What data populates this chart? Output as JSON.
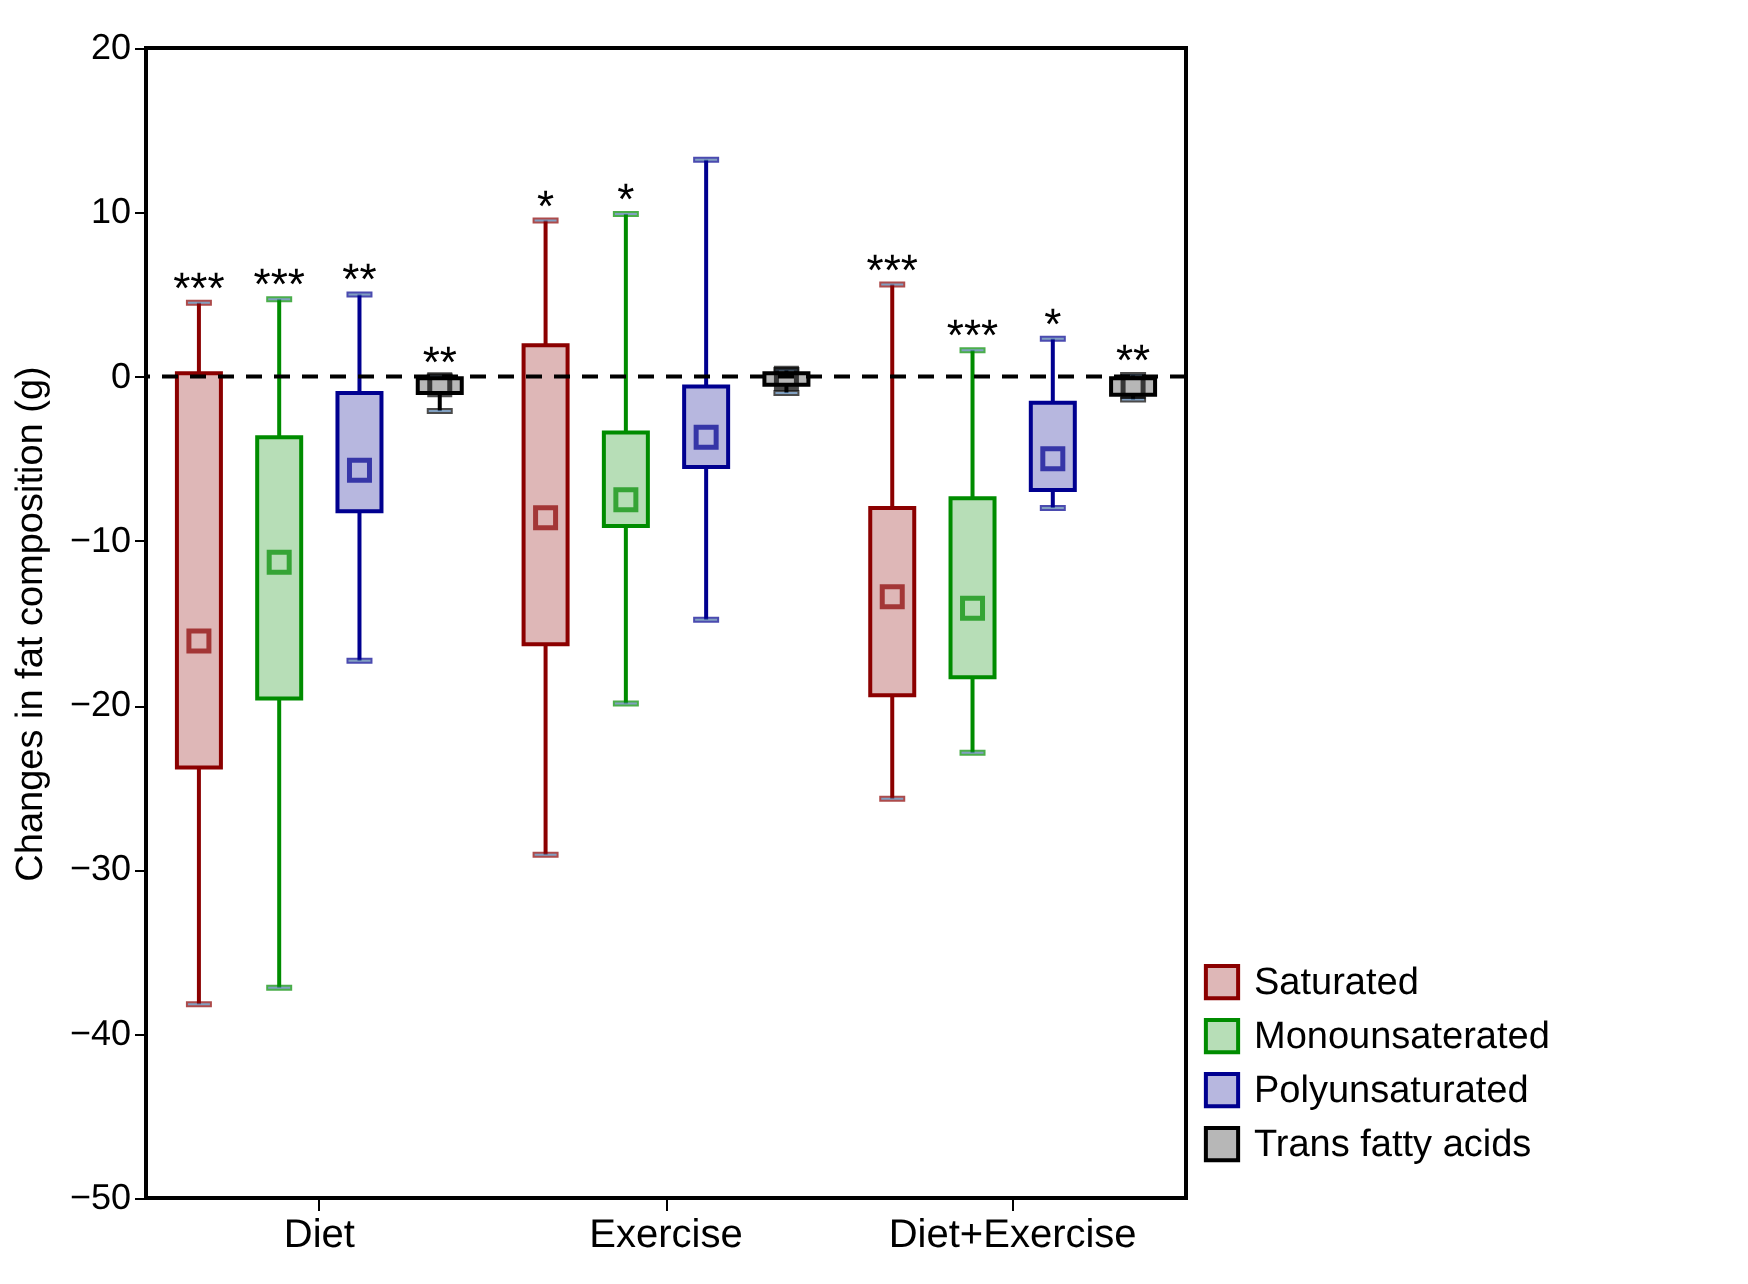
{
  "chart_data": {
    "type": "box",
    "ylabel": "Changes in fat composition (g)",
    "categories": [
      "Diet",
      "Exercise",
      "Diet+Exercise"
    ],
    "ylim": [
      -50,
      20
    ],
    "yticks": [
      -50,
      -40,
      -30,
      -20,
      -10,
      0,
      10,
      20
    ],
    "grid": false,
    "legend": "bottom right",
    "marker": "square",
    "series": [
      {
        "name": "Saturated",
        "color": "#8b0000",
        "boxes": [
          {
            "low": -38.2,
            "q1": -23.8,
            "median": -16.1,
            "q3": 0.2,
            "high": 4.5
          },
          {
            "low": -29.1,
            "q1": -16.3,
            "median": -8.6,
            "q3": 1.9,
            "high": 9.5
          },
          {
            "low": -25.7,
            "q1": -19.4,
            "median": -13.4,
            "q3": -8.0,
            "high": 5.6
          }
        ]
      },
      {
        "name": "Monounsaterated",
        "color": "#008c00",
        "boxes": [
          {
            "low": -37.2,
            "q1": -19.6,
            "median": -11.3,
            "q3": -3.7,
            "high": 4.7
          },
          {
            "low": -19.9,
            "q1": -9.1,
            "median": -7.5,
            "q3": -3.4,
            "high": 9.9
          },
          {
            "low": -22.9,
            "q1": -18.3,
            "median": -14.1,
            "q3": -7.4,
            "high": 1.6
          }
        ]
      },
      {
        "name": "Polyunsaturated",
        "color": "#000090",
        "boxes": [
          {
            "low": -17.3,
            "q1": -8.2,
            "median": -5.7,
            "q3": -1.0,
            "high": 5.0
          },
          {
            "low": -14.8,
            "q1": -5.5,
            "median": -3.7,
            "q3": -0.6,
            "high": 13.2
          },
          {
            "low": -8.0,
            "q1": -6.9,
            "median": -5.0,
            "q3": -1.6,
            "high": 2.3
          }
        ]
      },
      {
        "name": "Trans fatty acids",
        "color": "#000000",
        "boxes": [
          {
            "low": -2.1,
            "q1": -1.0,
            "median": -0.5,
            "q3": -0.1,
            "high": 0.0
          },
          {
            "low": -1.0,
            "q1": -0.5,
            "median": -0.1,
            "q3": 0.2,
            "high": 0.4
          },
          {
            "low": -1.4,
            "q1": -1.1,
            "median": -0.6,
            "q3": -0.1,
            "high": 0.1
          }
        ]
      }
    ],
    "ref_lines": [
      {
        "axis": "y",
        "value": 0,
        "line_style": "dashed",
        "color": "#000000"
      }
    ],
    "annotations": [
      "***",
      "***",
      "**",
      "**",
      "*",
      "*",
      null,
      null,
      "***",
      "***",
      "*",
      "**"
    ]
  }
}
